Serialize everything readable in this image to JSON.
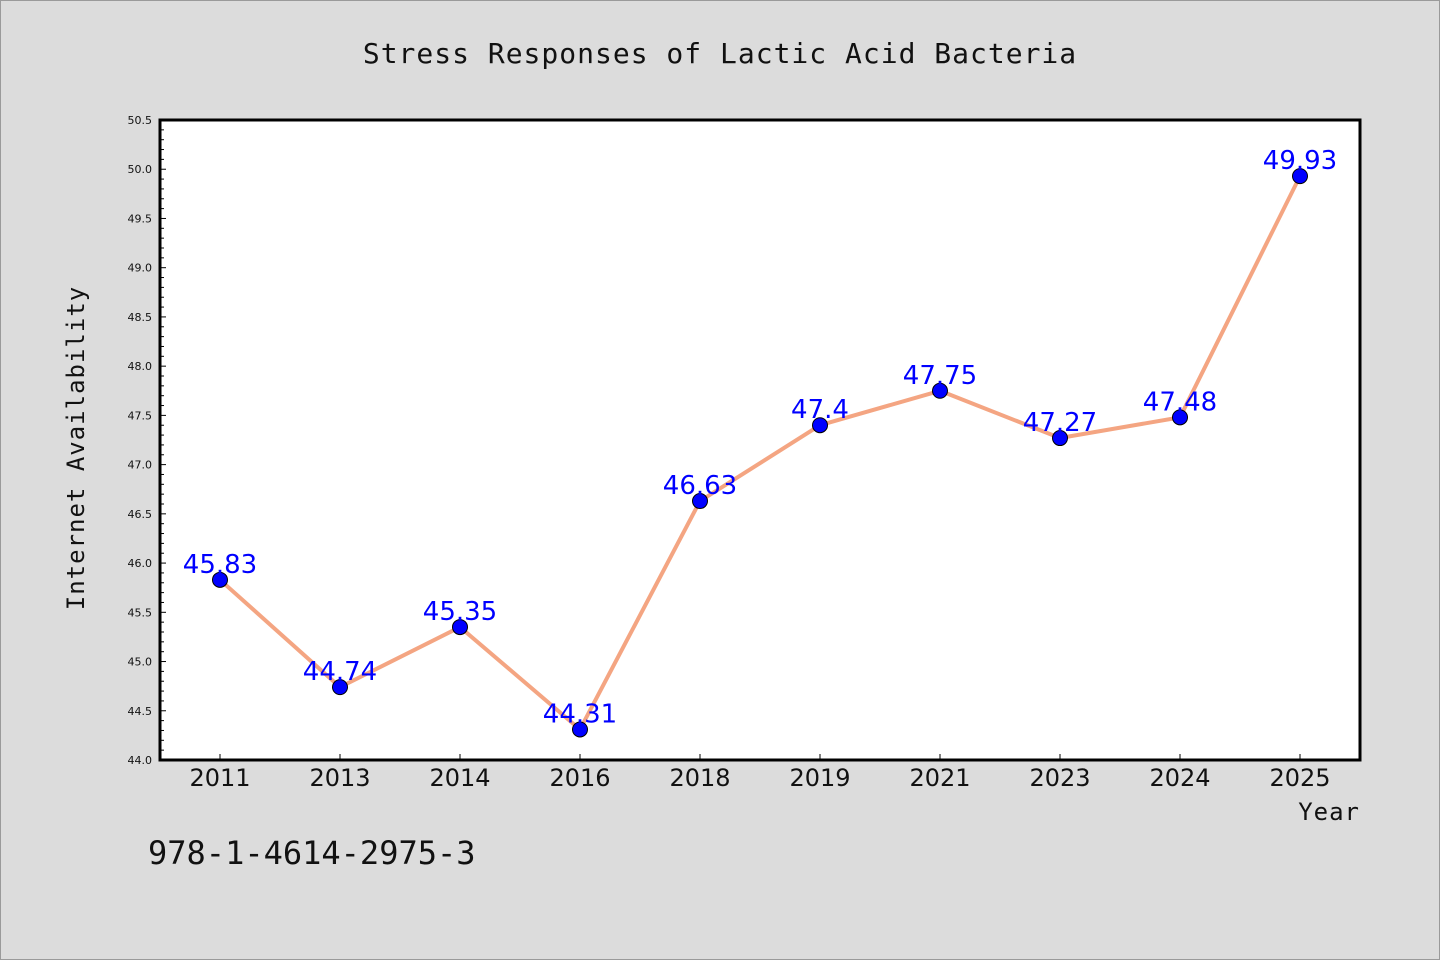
{
  "chart_data": {
    "type": "line",
    "title": "Stress Responses of Lactic Acid Bacteria",
    "xlabel": "Year",
    "ylabel": "Internet Availability",
    "categories": [
      "2011",
      "2013",
      "2014",
      "2016",
      "2018",
      "2019",
      "2021",
      "2023",
      "2024",
      "2025"
    ],
    "values": [
      45.83,
      44.74,
      45.35,
      44.31,
      46.63,
      47.4,
      47.75,
      47.27,
      47.48,
      49.93
    ],
    "value_labels": [
      "45.83",
      "44.74",
      "45.35",
      "44.31",
      "46.63",
      "47.4",
      "47.75",
      "47.27",
      "47.48",
      "49.93"
    ],
    "ylim": [
      44.0,
      50.5
    ],
    "yticks": [
      "44.0",
      "44.5",
      "45.0",
      "45.5",
      "46.0",
      "46.5",
      "47.0",
      "47.5",
      "48.0",
      "48.5",
      "49.0",
      "49.5",
      "50.0",
      "50.5"
    ],
    "grid": false,
    "colors": {
      "line": "#f4a582",
      "marker": "#0000ff",
      "value_label": "#0000ff"
    }
  },
  "footer": {
    "isbn": "978-1-4614-2975-3"
  }
}
